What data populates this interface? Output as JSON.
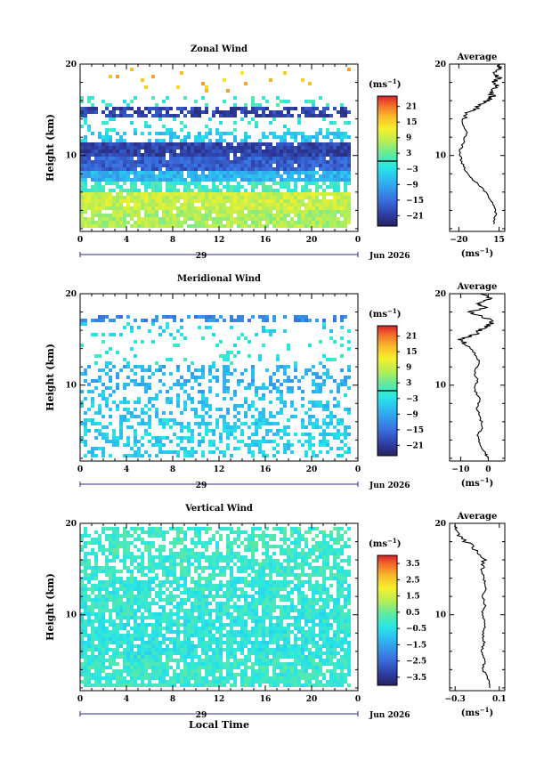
{
  "chart_data": [
    {
      "type": "heatmap",
      "title": "Zonal Wind",
      "ylabel": "Height (km)",
      "xlabel": "",
      "x_ticks": [
        "0",
        "4",
        "8",
        "12",
        "16",
        "20",
        "0"
      ],
      "y_ticks": [
        "10",
        "20"
      ],
      "xlim": [
        0,
        24
      ],
      "ylim": [
        1.7,
        20
      ],
      "date_day": "29",
      "date_label": "Jun 2026",
      "colorbar": {
        "unit_label": "(ms",
        "unit_exp": "−1",
        "unit_close": ")",
        "tick_labels": [
          "21",
          "15",
          "9",
          "3",
          "−3",
          "−9",
          "−15",
          "−21"
        ],
        "tick_values": [
          21,
          15,
          9,
          3,
          -3,
          -9,
          -15,
          -21
        ],
        "range": [
          -25,
          25
        ],
        "zero_line": 0
      },
      "bands": [
        {
          "h0": 16.8,
          "h1": 19.5,
          "value": 16,
          "fill": 0.03
        },
        {
          "h0": 15.1,
          "h1": 16.2,
          "value": -1,
          "fill": 0.15
        },
        {
          "h0": 13.9,
          "h1": 15.1,
          "value": -20,
          "fill": 0.65
        },
        {
          "h0": 12.6,
          "h1": 13.9,
          "value": -2,
          "fill": 0.15
        },
        {
          "h0": 11.2,
          "h1": 12.6,
          "value": -6,
          "fill": 0.45
        },
        {
          "h0": 9.6,
          "h1": 11.2,
          "value": -20,
          "fill": 0.97
        },
        {
          "h0": 8.2,
          "h1": 9.6,
          "value": -17,
          "fill": 0.97
        },
        {
          "h0": 6.8,
          "h1": 8.2,
          "value": -8,
          "fill": 0.92
        },
        {
          "h0": 5.6,
          "h1": 6.8,
          "value": 0,
          "fill": 0.7
        },
        {
          "h0": 3.8,
          "h1": 5.6,
          "value": 9,
          "fill": 0.95
        },
        {
          "h0": 1.8,
          "h1": 3.8,
          "value": 7,
          "fill": 0.9
        }
      ],
      "average": {
        "title": "Average",
        "x_ticks": [
          "−20",
          "15"
        ],
        "x_tick_values": [
          -20,
          15
        ],
        "xlim": [
          -28,
          20
        ],
        "y_ticks": [
          "10",
          "20"
        ],
        "xlabel_base": "(ms",
        "xlabel_exp": "−1",
        "xlabel_close": ")",
        "profile": [
          [
            2.5,
            10
          ],
          [
            3.5,
            12
          ],
          [
            4.5,
            11
          ],
          [
            5.5,
            6
          ],
          [
            6.5,
            0
          ],
          [
            7.5,
            -9
          ],
          [
            8.5,
            -15
          ],
          [
            9.5,
            -18
          ],
          [
            10.5,
            -19
          ],
          [
            11.5,
            -16
          ],
          [
            12.5,
            -13
          ],
          [
            13.5,
            -17
          ],
          [
            14.5,
            -15
          ],
          [
            15.0,
            -6
          ],
          [
            15.5,
            -1
          ],
          [
            16.0,
            5
          ],
          [
            16.5,
            9
          ],
          [
            17.0,
            8
          ],
          [
            17.5,
            13
          ],
          [
            18.0,
            11
          ],
          [
            18.5,
            15
          ],
          [
            19.0,
            12
          ],
          [
            19.5,
            14
          ],
          [
            20.0,
            16
          ]
        ]
      }
    },
    {
      "type": "heatmap",
      "title": "Meridional Wind",
      "ylabel": "Height (km)",
      "xlabel": "",
      "x_ticks": [
        "0",
        "4",
        "8",
        "12",
        "16",
        "20",
        "0"
      ],
      "y_ticks": [
        "10",
        "20"
      ],
      "xlim": [
        0,
        24
      ],
      "ylim": [
        1.7,
        20
      ],
      "date_day": "29",
      "date_label": "Jun 2026",
      "colorbar": {
        "unit_label": "(ms",
        "unit_exp": "−1",
        "unit_close": ")",
        "tick_labels": [
          "21",
          "15",
          "9",
          "3",
          "−3",
          "−9",
          "−15",
          "−21"
        ],
        "tick_values": [
          21,
          15,
          9,
          3,
          -3,
          -9,
          -15,
          -21
        ],
        "range": [
          -25,
          25
        ],
        "zero_line": 0
      },
      "bands": [
        {
          "h0": 16.5,
          "h1": 17.3,
          "value": -12,
          "fill": 0.5
        },
        {
          "h0": 15.0,
          "h1": 16.5,
          "value": -4,
          "fill": 0.12
        },
        {
          "h0": 12.0,
          "h1": 15.0,
          "value": -2,
          "fill": 0.1
        },
        {
          "h0": 9.0,
          "h1": 12.0,
          "value": -8,
          "fill": 0.4
        },
        {
          "h0": 6.0,
          "h1": 9.0,
          "value": -6,
          "fill": 0.35
        },
        {
          "h0": 2.0,
          "h1": 6.0,
          "value": -5,
          "fill": 0.4
        }
      ],
      "average": {
        "title": "Average",
        "x_ticks": [
          "−10",
          "0"
        ],
        "x_tick_values": [
          -10,
          0
        ],
        "xlim": [
          -14,
          6
        ],
        "y_ticks": [
          "10",
          "20"
        ],
        "xlabel_base": "(ms",
        "xlabel_exp": "−1",
        "xlabel_close": ")",
        "profile": [
          [
            2.0,
            0
          ],
          [
            2.5,
            -1
          ],
          [
            3.5,
            -3
          ],
          [
            4.5,
            -4
          ],
          [
            5.5,
            -2
          ],
          [
            6.5,
            -3
          ],
          [
            7.5,
            -4
          ],
          [
            8.5,
            -3
          ],
          [
            9.5,
            -5
          ],
          [
            10.5,
            -4
          ],
          [
            11.5,
            -5
          ],
          [
            12.5,
            -3
          ],
          [
            13.5,
            -5
          ],
          [
            14.5,
            -8
          ],
          [
            15.0,
            -10
          ],
          [
            15.5,
            -5
          ],
          [
            16.0,
            -3
          ],
          [
            16.5,
            0
          ],
          [
            17.0,
            2
          ],
          [
            17.5,
            -2
          ],
          [
            18.0,
            -7
          ],
          [
            18.5,
            -1
          ],
          [
            19.0,
            -4
          ],
          [
            19.5,
            1
          ],
          [
            20.0,
            -3
          ]
        ]
      }
    },
    {
      "type": "heatmap",
      "title": "Vertical Wind",
      "ylabel": "Height (km)",
      "xlabel": "Local Time",
      "x_ticks": [
        "0",
        "4",
        "8",
        "12",
        "16",
        "20",
        "0"
      ],
      "y_ticks": [
        "10",
        "20"
      ],
      "xlim": [
        0,
        24
      ],
      "ylim": [
        1.7,
        20
      ],
      "date_day": "29",
      "date_label": "Jun 2026",
      "colorbar": {
        "unit_label": "(ms",
        "unit_exp": "−1",
        "unit_close": ")",
        "tick_labels": [
          "3.5",
          "2.5",
          "1.5",
          "0.5",
          "−0.5",
          "−1.5",
          "−2.5",
          "−3.5"
        ],
        "tick_values": [
          3.5,
          2.5,
          1.5,
          0.5,
          -0.5,
          -1.5,
          -2.5,
          -3.5
        ],
        "range": [
          -4,
          4
        ],
        "zero_line": null
      },
      "bands": [
        {
          "h0": 16.5,
          "h1": 19.6,
          "value": 0.0,
          "fill": 0.6
        },
        {
          "h0": 13.5,
          "h1": 16.5,
          "value": -0.1,
          "fill": 0.7
        },
        {
          "h0": 10.0,
          "h1": 13.5,
          "value": -0.2,
          "fill": 0.8
        },
        {
          "h0": 5.0,
          "h1": 10.0,
          "value": -0.3,
          "fill": 0.85
        },
        {
          "h0": 1.8,
          "h1": 5.0,
          "value": -0.1,
          "fill": 0.85
        }
      ],
      "average": {
        "title": "Average",
        "x_ticks": [
          "−0.3",
          "0.1"
        ],
        "x_tick_values": [
          -0.3,
          0.1
        ],
        "xlim": [
          -0.35,
          0.15
        ],
        "y_ticks": [
          "10",
          "20"
        ],
        "xlabel_base": "(ms",
        "xlabel_exp": "−1",
        "xlabel_close": ")",
        "profile": [
          [
            2.0,
            0.02
          ],
          [
            3.0,
            0.0
          ],
          [
            4.0,
            -0.05
          ],
          [
            5.0,
            -0.03
          ],
          [
            6.0,
            -0.06
          ],
          [
            7.0,
            -0.04
          ],
          [
            8.0,
            -0.05
          ],
          [
            9.0,
            -0.02
          ],
          [
            10.0,
            -0.06
          ],
          [
            11.0,
            -0.03
          ],
          [
            12.0,
            -0.05
          ],
          [
            13.0,
            -0.02
          ],
          [
            14.0,
            -0.04
          ],
          [
            15.0,
            -0.07
          ],
          [
            16.0,
            -0.03
          ],
          [
            17.0,
            -0.1
          ],
          [
            18.0,
            -0.2
          ],
          [
            19.0,
            -0.28
          ],
          [
            19.8,
            -0.3
          ]
        ]
      }
    }
  ]
}
